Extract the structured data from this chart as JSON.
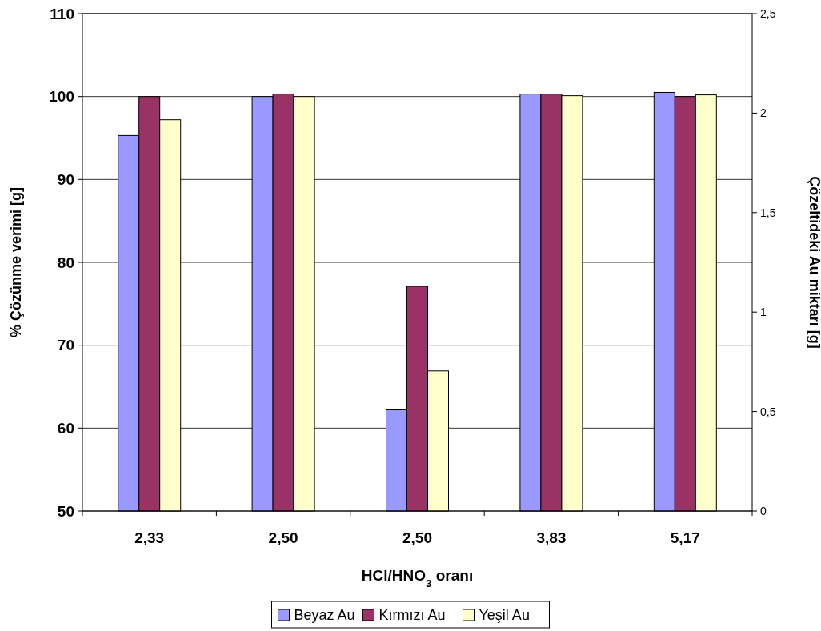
{
  "chart_data": {
    "type": "bar",
    "xlabel": "HCl/HNO$_{3}$ oranı",
    "ylabel": "% Çözünme verimi  [g]",
    "y2label": "Çözeltideki Au miktarı [g]",
    "categories": [
      "2,33",
      "2,50",
      "2,50",
      "3,83",
      "5,17"
    ],
    "series": [
      {
        "name": "Beyaz Au",
        "color": "#9999ff",
        "values": [
          95.3,
          100,
          62.2,
          100.3,
          100.5
        ]
      },
      {
        "name": "Kırmızı Au",
        "color": "#993366",
        "values": [
          100,
          100.3,
          77.1,
          100.3,
          100
        ]
      },
      {
        "name": "Yeşil Au",
        "color": "#ffffcc",
        "values": [
          97.2,
          100,
          66.9,
          100.1,
          100.2
        ]
      }
    ],
    "ylim": [
      50,
      110
    ],
    "yticks": [
      50,
      60,
      70,
      80,
      90,
      100,
      110
    ],
    "y2lim": [
      0,
      2.5
    ],
    "y2ticks": [
      0,
      {
        "value": 0.5,
        "label": "0,5"
      },
      1,
      {
        "value": 1.5,
        "label": "1,5"
      },
      2,
      {
        "value": 2.5,
        "label": "2,5"
      }
    ],
    "grid": "y",
    "legend": "bottom"
  }
}
